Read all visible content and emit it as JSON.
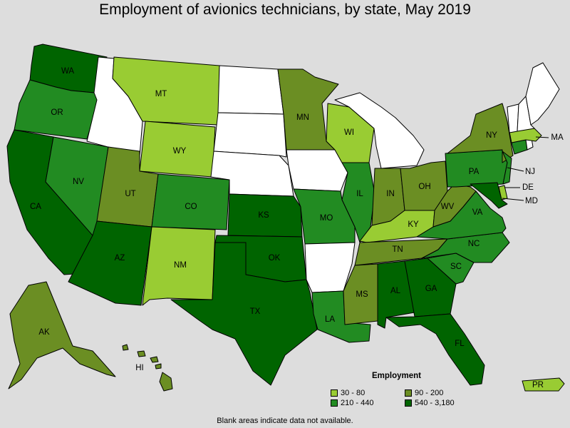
{
  "title": "Employment of avionics technicians, by state, May 2019",
  "legend": {
    "title": "Employment",
    "bins": [
      {
        "label": "30 - 80",
        "color": "#99cc33"
      },
      {
        "label": "90 - 200",
        "color": "#6b8e23"
      },
      {
        "label": "210 - 440",
        "color": "#228b22"
      },
      {
        "label": "540 - 3,180",
        "color": "#006400"
      }
    ]
  },
  "footnote": "Blank areas indicate data not available.",
  "no_data_color": "#ffffff",
  "states": {
    "WA": {
      "label": "WA",
      "bin": 3
    },
    "OR": {
      "label": "OR",
      "bin": 2
    },
    "CA": {
      "label": "CA",
      "bin": 3
    },
    "NV": {
      "label": "NV",
      "bin": 2
    },
    "ID": {
      "label": "",
      "bin": -1
    },
    "MT": {
      "label": "MT",
      "bin": 0
    },
    "WY": {
      "label": "WY",
      "bin": 0
    },
    "UT": {
      "label": "UT",
      "bin": 1
    },
    "AZ": {
      "label": "AZ",
      "bin": 3
    },
    "CO": {
      "label": "CO",
      "bin": 2
    },
    "NM": {
      "label": "NM",
      "bin": 0
    },
    "ND": {
      "label": "",
      "bin": -1
    },
    "SD": {
      "label": "",
      "bin": -1
    },
    "NE": {
      "label": "",
      "bin": -1
    },
    "KS": {
      "label": "KS",
      "bin": 3
    },
    "OK": {
      "label": "OK",
      "bin": 3
    },
    "TX": {
      "label": "TX",
      "bin": 3
    },
    "MN": {
      "label": "MN",
      "bin": 1
    },
    "IA": {
      "label": "",
      "bin": -1
    },
    "MO": {
      "label": "MO",
      "bin": 2
    },
    "AR": {
      "label": "",
      "bin": -1
    },
    "LA": {
      "label": "LA",
      "bin": 2
    },
    "WI": {
      "label": "WI",
      "bin": 0
    },
    "IL": {
      "label": "IL",
      "bin": 2
    },
    "MI": {
      "label": "",
      "bin": -1
    },
    "IN": {
      "label": "IN",
      "bin": 1
    },
    "OH": {
      "label": "OH",
      "bin": 1
    },
    "KY": {
      "label": "KY",
      "bin": 0
    },
    "TN": {
      "label": "TN",
      "bin": 1
    },
    "MS": {
      "label": "MS",
      "bin": 1
    },
    "AL": {
      "label": "AL",
      "bin": 3
    },
    "GA": {
      "label": "GA",
      "bin": 3
    },
    "FL": {
      "label": "FL",
      "bin": 3
    },
    "SC": {
      "label": "SC",
      "bin": 2
    },
    "NC": {
      "label": "NC",
      "bin": 2
    },
    "VA": {
      "label": "VA",
      "bin": 2
    },
    "WV": {
      "label": "WV",
      "bin": 1
    },
    "PA": {
      "label": "PA",
      "bin": 2
    },
    "NY": {
      "label": "NY",
      "bin": 1
    },
    "NJ": {
      "label": "NJ",
      "bin": 2
    },
    "DE": {
      "label": "DE",
      "bin": 0
    },
    "MD": {
      "label": "MD",
      "bin": 3
    },
    "CT": {
      "label": "",
      "bin": 2
    },
    "RI": {
      "label": "",
      "bin": -1
    },
    "MA": {
      "label": "MA",
      "bin": 0
    },
    "VT": {
      "label": "",
      "bin": -1
    },
    "NH": {
      "label": "",
      "bin": -1
    },
    "ME": {
      "label": "",
      "bin": -1
    },
    "AK": {
      "label": "AK",
      "bin": 1
    },
    "HI": {
      "label": "HI",
      "bin": 1
    },
    "PR": {
      "label": "PR",
      "bin": 0
    }
  }
}
